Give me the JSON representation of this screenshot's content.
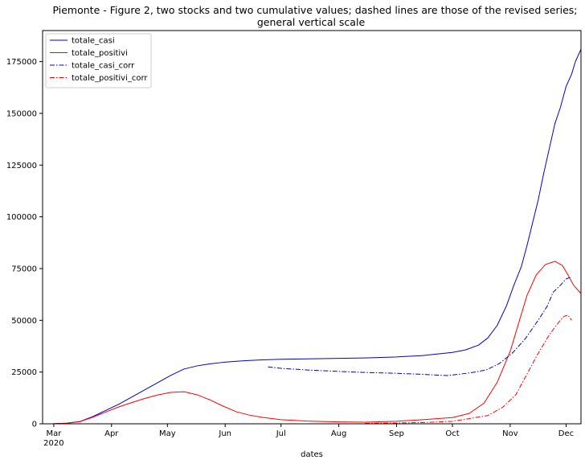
{
  "chart_data": {
    "type": "line",
    "title": [
      "Piemonte - Figure 2, two stocks and two cumulative values; dashed lines are those of the revised series;",
      "general vertical scale"
    ],
    "xlabel": "dates",
    "ylabel": "",
    "x_ticks": [
      {
        "date": "2020-03-01",
        "label": "Mar",
        "sub": "2020"
      },
      {
        "date": "2020-04-01",
        "label": "Apr",
        "sub": ""
      },
      {
        "date": "2020-05-01",
        "label": "May",
        "sub": ""
      },
      {
        "date": "2020-06-01",
        "label": "Jun",
        "sub": ""
      },
      {
        "date": "2020-07-01",
        "label": "Jul",
        "sub": ""
      },
      {
        "date": "2020-08-01",
        "label": "Aug",
        "sub": ""
      },
      {
        "date": "2020-09-01",
        "label": "Sep",
        "sub": ""
      },
      {
        "date": "2020-10-01",
        "label": "Oct",
        "sub": ""
      },
      {
        "date": "2020-11-01",
        "label": "Nov",
        "sub": ""
      },
      {
        "date": "2020-12-01",
        "label": "Dec",
        "sub": ""
      }
    ],
    "xlim": [
      "2020-02-24",
      "2020-12-09"
    ],
    "ylim": [
      0,
      190000
    ],
    "y_ticks": [
      0,
      25000,
      50000,
      75000,
      100000,
      125000,
      150000,
      175000
    ],
    "grid": false,
    "legend_position": "upper-left",
    "series": [
      {
        "name": "totale_casi",
        "color": "#0000cc",
        "dash": "solid",
        "points": [
          [
            "2020-02-24",
            0
          ],
          [
            "2020-03-01",
            50
          ],
          [
            "2020-03-08",
            300
          ],
          [
            "2020-03-15",
            1100
          ],
          [
            "2020-03-22",
            3500
          ],
          [
            "2020-03-29",
            6500
          ],
          [
            "2020-04-05",
            9500
          ],
          [
            "2020-04-12",
            13000
          ],
          [
            "2020-04-19",
            16500
          ],
          [
            "2020-04-26",
            20000
          ],
          [
            "2020-05-03",
            23500
          ],
          [
            "2020-05-10",
            26500
          ],
          [
            "2020-05-17",
            28000
          ],
          [
            "2020-05-24",
            29000
          ],
          [
            "2020-05-31",
            29700
          ],
          [
            "2020-06-07",
            30200
          ],
          [
            "2020-06-14",
            30600
          ],
          [
            "2020-06-21",
            30900
          ],
          [
            "2020-07-01",
            31200
          ],
          [
            "2020-07-15",
            31400
          ],
          [
            "2020-08-01",
            31600
          ],
          [
            "2020-08-15",
            31800
          ],
          [
            "2020-09-01",
            32300
          ],
          [
            "2020-09-15",
            33000
          ],
          [
            "2020-10-01",
            34500
          ],
          [
            "2020-10-08",
            35700
          ],
          [
            "2020-10-15",
            38000
          ],
          [
            "2020-10-20",
            41500
          ],
          [
            "2020-10-25",
            47500
          ],
          [
            "2020-10-30",
            57000
          ],
          [
            "2020-11-03",
            67000
          ],
          [
            "2020-11-07",
            76000
          ],
          [
            "2020-11-10",
            86000
          ],
          [
            "2020-11-13",
            97000
          ],
          [
            "2020-11-16",
            108000
          ],
          [
            "2020-11-19",
            121000
          ],
          [
            "2020-11-22",
            133000
          ],
          [
            "2020-11-25",
            145000
          ],
          [
            "2020-11-28",
            153000
          ],
          [
            "2020-12-01",
            163000
          ],
          [
            "2020-12-04",
            169000
          ],
          [
            "2020-12-06",
            175000
          ],
          [
            "2020-12-09",
            181000
          ]
        ]
      },
      {
        "name": "totale_positivi",
        "color": "#ff0000",
        "dash": "solid",
        "points": [
          [
            "2020-02-24",
            0
          ],
          [
            "2020-03-01",
            50
          ],
          [
            "2020-03-08",
            300
          ],
          [
            "2020-03-15",
            1000
          ],
          [
            "2020-03-22",
            3200
          ],
          [
            "2020-03-29",
            5700
          ],
          [
            "2020-04-05",
            8200
          ],
          [
            "2020-04-12",
            10300
          ],
          [
            "2020-04-19",
            12300
          ],
          [
            "2020-04-26",
            14000
          ],
          [
            "2020-05-03",
            15200
          ],
          [
            "2020-05-10",
            15500
          ],
          [
            "2020-05-17",
            14000
          ],
          [
            "2020-05-24",
            11500
          ],
          [
            "2020-05-31",
            8500
          ],
          [
            "2020-06-07",
            5800
          ],
          [
            "2020-06-14",
            4200
          ],
          [
            "2020-06-21",
            3100
          ],
          [
            "2020-07-01",
            2000
          ],
          [
            "2020-07-15",
            1300
          ],
          [
            "2020-08-01",
            900
          ],
          [
            "2020-08-15",
            800
          ],
          [
            "2020-09-01",
            1200
          ],
          [
            "2020-09-15",
            2000
          ],
          [
            "2020-10-01",
            3000
          ],
          [
            "2020-10-10",
            5000
          ],
          [
            "2020-10-18",
            10000
          ],
          [
            "2020-10-25",
            20000
          ],
          [
            "2020-11-01",
            35000
          ],
          [
            "2020-11-06",
            50000
          ],
          [
            "2020-11-10",
            62000
          ],
          [
            "2020-11-15",
            72000
          ],
          [
            "2020-11-20",
            77000
          ],
          [
            "2020-11-25",
            78500
          ],
          [
            "2020-11-29",
            76500
          ],
          [
            "2020-12-02",
            72000
          ],
          [
            "2020-12-05",
            67000
          ],
          [
            "2020-12-09",
            63000
          ]
        ]
      },
      {
        "name": "totale_casi_corr",
        "color": "#0000cc",
        "dash": "dashdot",
        "points": [
          [
            "2020-06-24",
            27500
          ],
          [
            "2020-07-01",
            26800
          ],
          [
            "2020-07-15",
            26000
          ],
          [
            "2020-08-01",
            25300
          ],
          [
            "2020-08-15",
            24800
          ],
          [
            "2020-09-01",
            24400
          ],
          [
            "2020-09-15",
            23900
          ],
          [
            "2020-09-28",
            23300
          ],
          [
            "2020-10-05",
            24000
          ],
          [
            "2020-10-12",
            24800
          ],
          [
            "2020-10-19",
            26000
          ],
          [
            "2020-10-26",
            29000
          ],
          [
            "2020-11-02",
            34000
          ],
          [
            "2020-11-09",
            41000
          ],
          [
            "2020-11-16",
            50000
          ],
          [
            "2020-11-21",
            57000
          ],
          [
            "2020-11-24",
            63500
          ],
          [
            "2020-11-28",
            67000
          ],
          [
            "2020-12-01",
            70000
          ],
          [
            "2020-12-04",
            71000
          ]
        ]
      },
      {
        "name": "totale_positivi_corr",
        "color": "#ff0000",
        "dash": "dashdot",
        "points": [
          [
            "2020-08-15",
            200
          ],
          [
            "2020-09-01",
            400
          ],
          [
            "2020-09-15",
            600
          ],
          [
            "2020-10-01",
            1200
          ],
          [
            "2020-10-10",
            2500
          ],
          [
            "2020-10-20",
            4000
          ],
          [
            "2020-10-28",
            8000
          ],
          [
            "2020-11-04",
            14000
          ],
          [
            "2020-11-10",
            24000
          ],
          [
            "2020-11-16",
            34000
          ],
          [
            "2020-11-22",
            43000
          ],
          [
            "2020-11-27",
            49000
          ],
          [
            "2020-11-30",
            52000
          ],
          [
            "2020-12-02",
            52500
          ],
          [
            "2020-12-04",
            50000
          ]
        ]
      }
    ]
  }
}
